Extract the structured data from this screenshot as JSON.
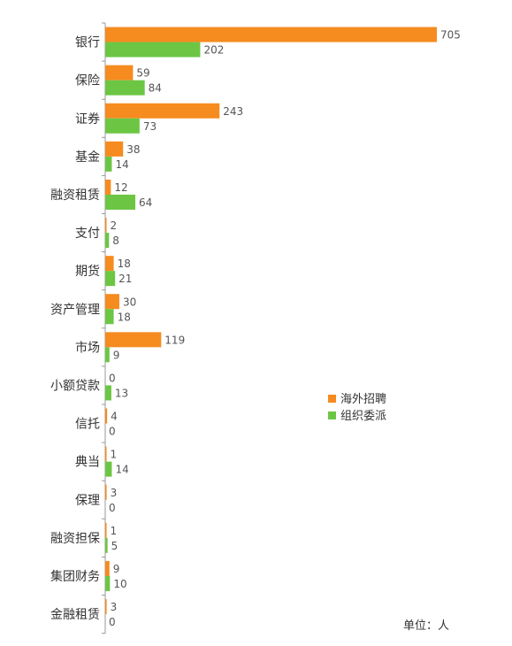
{
  "chart_data": {
    "type": "bar",
    "orientation": "horizontal",
    "categories": [
      "银行",
      "保险",
      "证券",
      "基金",
      "融资租赁",
      "支付",
      "期货",
      "资产管理",
      "市场",
      "小额贷款",
      "信托",
      "典当",
      "保理",
      "融资担保",
      "集团财务",
      "金融租赁"
    ],
    "series": [
      {
        "name": "海外招聘",
        "color": "#F68B1F",
        "values": [
          705,
          59,
          243,
          38,
          12,
          2,
          18,
          30,
          119,
          0,
          4,
          1,
          3,
          1,
          9,
          3
        ]
      },
      {
        "name": "组织委派",
        "color": "#6CC644",
        "values": [
          202,
          84,
          73,
          14,
          64,
          8,
          21,
          18,
          9,
          13,
          0,
          14,
          0,
          5,
          10,
          0
        ]
      }
    ],
    "xlim": [
      0,
      705
    ],
    "grid": false,
    "legend_position": "right",
    "unit_label": "单位：人"
  }
}
